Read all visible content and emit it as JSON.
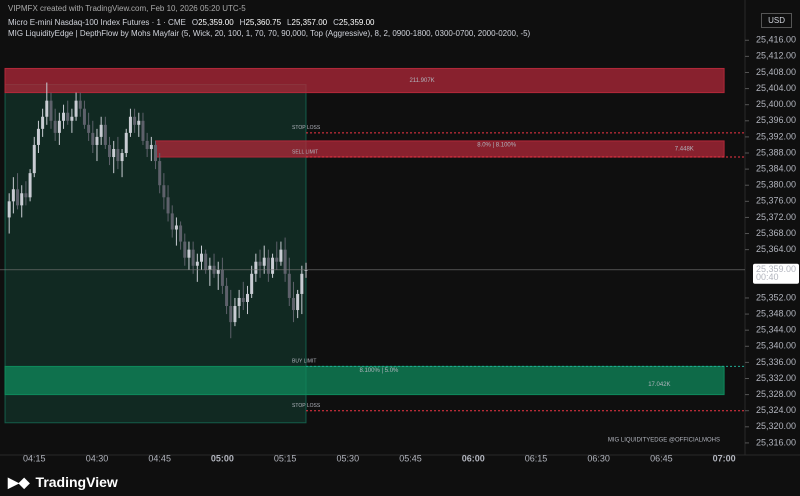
{
  "header": {
    "credit": "VIPMFX created with TradingView.com, Feb 10, 2026 05:20 UTC-5",
    "symbol": "Micro E-mini Nasdaq-100 Index Futures · 1 · CME",
    "ohlc": [
      {
        "key": "O",
        "label": "25,359.00"
      },
      {
        "key": "H",
        "label": "25,360.75"
      },
      {
        "key": "L",
        "label": "25,357.00"
      },
      {
        "key": "C",
        "label": "25,359.00"
      }
    ],
    "indicator": "MIG LiquidityEdge | DepthFlow by Mohs Mayfair (5, Wick, 20, 100, 1, 70, 70, 90,000, Top (Aggressive), 8, 2, 0900-1800, 0300-0700, 2000-0200, -5)",
    "currency": "USD"
  },
  "chart_data": {
    "type": "candlestick",
    "up_color": "#c9ccd3",
    "down_color": "#5e616b",
    "x": [
      "04:09",
      "04:10",
      "04:11",
      "04:12",
      "04:13",
      "04:14",
      "04:15",
      "04:16",
      "04:17",
      "04:18",
      "04:19",
      "04:20",
      "04:21",
      "04:22",
      "04:23",
      "04:24",
      "04:25",
      "04:26",
      "04:27",
      "04:28",
      "04:29",
      "04:30",
      "04:31",
      "04:32",
      "04:33",
      "04:34",
      "04:35",
      "04:36",
      "04:37",
      "04:38",
      "04:39",
      "04:40",
      "04:41",
      "04:42",
      "04:43",
      "04:44",
      "04:45",
      "04:46",
      "04:47",
      "04:48",
      "04:49",
      "04:50",
      "04:51",
      "04:52",
      "04:53",
      "04:54",
      "04:55",
      "04:56",
      "04:57",
      "04:58",
      "04:59",
      "05:00",
      "05:01",
      "05:02",
      "05:03",
      "05:04",
      "05:05",
      "05:06",
      "05:07",
      "05:08",
      "05:09",
      "05:10",
      "05:11",
      "05:12",
      "05:13",
      "05:14",
      "05:15",
      "05:16",
      "05:17",
      "05:18",
      "05:19",
      "05:20"
    ],
    "ohlc": [
      [
        25372,
        25378,
        25368,
        25376
      ],
      [
        25376,
        25382,
        25373,
        25379
      ],
      [
        25379,
        25383,
        25374,
        25375
      ],
      [
        25375,
        25380,
        25372,
        25378
      ],
      [
        25378,
        25381,
        25375,
        25377
      ],
      [
        25377,
        25384,
        25376,
        25383
      ],
      [
        25383,
        25392,
        25382,
        25390
      ],
      [
        25390,
        25396,
        25388,
        25394
      ],
      [
        25394,
        25399,
        25392,
        25397
      ],
      [
        25397,
        25405.5,
        25395,
        25401
      ],
      [
        25401,
        25403,
        25394,
        25396
      ],
      [
        25396,
        25399,
        25391,
        25393
      ],
      [
        25393,
        25398,
        25390,
        25396
      ],
      [
        25396,
        25400,
        25394,
        25398
      ],
      [
        25398,
        25401,
        25395,
        25396
      ],
      [
        25396,
        25399,
        25393,
        25397
      ],
      [
        25397,
        25403,
        25396,
        25401
      ],
      [
        25401,
        25403,
        25397,
        25399
      ],
      [
        25399,
        25401,
        25394,
        25395
      ],
      [
        25395,
        25398,
        25391,
        25393
      ],
      [
        25393,
        25396,
        25388,
        25390
      ],
      [
        25390,
        25394,
        25386,
        25392
      ],
      [
        25392,
        25397,
        25390,
        25395
      ],
      [
        25395,
        25397,
        25389,
        25390
      ],
      [
        25390,
        25392,
        25385,
        25387
      ],
      [
        25387,
        25391,
        25383,
        25389
      ],
      [
        25389,
        25392,
        25384,
        25386
      ],
      [
        25386,
        25389,
        25382,
        25388
      ],
      [
        25388,
        25394,
        25387,
        25393
      ],
      [
        25393,
        25399,
        25392,
        25397
      ],
      [
        25397,
        25399,
        25393,
        25395
      ],
      [
        25395,
        25398,
        25392,
        25396
      ],
      [
        25396,
        25398,
        25390,
        25391
      ],
      [
        25391,
        25393,
        25387,
        25389
      ],
      [
        25389,
        25392,
        25386,
        25390
      ],
      [
        25390,
        25391,
        25384,
        25386
      ],
      [
        25386,
        25388,
        25378,
        25380
      ],
      [
        25380,
        25383,
        25374,
        25377
      ],
      [
        25377,
        25380,
        25371,
        25373
      ],
      [
        25373,
        25375,
        25367,
        25369
      ],
      [
        25369,
        25372,
        25365,
        25370
      ],
      [
        25370,
        25371,
        25364,
        25366
      ],
      [
        25366,
        25368,
        25360,
        25362
      ],
      [
        25362,
        25366,
        25359,
        25364
      ],
      [
        25364,
        25366,
        25358,
        25360
      ],
      [
        25360,
        25363,
        25356,
        25361
      ],
      [
        25361,
        25365,
        25359,
        25363
      ],
      [
        25363,
        25364,
        25358,
        25359
      ],
      [
        25359,
        25362,
        25355,
        25360
      ],
      [
        25360,
        25363,
        25357,
        25358
      ],
      [
        25358,
        25361,
        25354,
        25359
      ],
      [
        25359,
        25362,
        25353,
        25355
      ],
      [
        25355,
        25357,
        25348,
        25350
      ],
      [
        25350,
        25354,
        25342,
        25346
      ],
      [
        25346,
        25352,
        25345,
        25350
      ],
      [
        25350,
        25354,
        25347,
        25352
      ],
      [
        25352,
        25356,
        25349,
        25351
      ],
      [
        25351,
        25355,
        25348,
        25353
      ],
      [
        25353,
        25360,
        25352,
        25358
      ],
      [
        25358,
        25363,
        25356,
        25361
      ],
      [
        25361,
        25364,
        25357,
        25360
      ],
      [
        25360,
        25365,
        25358,
        25362
      ],
      [
        25362,
        25364,
        25356,
        25358
      ],
      [
        25358,
        25363,
        25357,
        25362
      ],
      [
        25362,
        25366,
        25359,
        25361
      ],
      [
        25361,
        25366,
        25360,
        25364
      ],
      [
        25364,
        25367,
        25356,
        25358
      ],
      [
        25358,
        25362,
        25350,
        25352
      ],
      [
        25352,
        25356,
        25346,
        25349
      ],
      [
        25349,
        25354,
        25347,
        25353
      ],
      [
        25353,
        25360,
        25348,
        25358
      ],
      [
        25359,
        25360.75,
        25357,
        25359
      ]
    ],
    "xlim": [
      "04:08",
      "07:05"
    ],
    "xticks": [
      "04:15",
      "04:30",
      "04:45",
      "05:00",
      "05:15",
      "05:30",
      "05:45",
      "06:00",
      "06:15",
      "06:30",
      "06:45",
      "07:00"
    ],
    "ylim": [
      25313,
      25426
    ],
    "yticks": [
      {
        "value": 25416,
        "label": "25,416.00"
      },
      {
        "value": 25412,
        "label": "25,412.00"
      },
      {
        "value": 25408,
        "label": "25,408.00"
      },
      {
        "value": 25404,
        "label": "25,404.00"
      },
      {
        "value": 25400,
        "label": "25,400.00"
      },
      {
        "value": 25396,
        "label": "25,396.00"
      },
      {
        "value": 25392,
        "label": "25,392.00"
      },
      {
        "value": 25388,
        "label": "25,388.00"
      },
      {
        "value": 25384,
        "label": "25,384.00"
      },
      {
        "value": 25380,
        "label": "25,380.00"
      },
      {
        "value": 25376,
        "label": "25,376.00"
      },
      {
        "value": 25372,
        "label": "25,372.00"
      },
      {
        "value": 25368,
        "label": "25,368.00"
      },
      {
        "value": 25364,
        "label": "25,364.00"
      },
      {
        "value": 25352,
        "label": "25,352.00"
      },
      {
        "value": 25348,
        "label": "25,348.00"
      },
      {
        "value": 25344,
        "label": "25,344.00"
      },
      {
        "value": 25340,
        "label": "25,340.00"
      },
      {
        "value": 25336,
        "label": "25,336.00"
      },
      {
        "value": 25332,
        "label": "25,332.00"
      },
      {
        "value": 25328,
        "label": "25,328.00"
      },
      {
        "value": 25324,
        "label": "25,324.00"
      },
      {
        "value": 25320,
        "label": "25,320.00"
      },
      {
        "value": 25316,
        "label": "25,316.00"
      }
    ],
    "session_box": {
      "top": 25405,
      "bottom": 25321,
      "start": "04:08",
      "end": "05:20",
      "color": "#1a9e7c"
    },
    "zones": [
      {
        "top": 25409,
        "bottom": 25403,
        "start": "04:08",
        "end": "07:00",
        "color": "#b2283a",
        "texts": [
          "211.907K"
        ]
      },
      {
        "top": 25391,
        "bottom": 25387,
        "start": "04:44",
        "end": "07:00",
        "color": "#b2283a",
        "texts": [
          "8.0% | 8.100%",
          "7.448K"
        ]
      },
      {
        "top": 25335,
        "bottom": 25328,
        "start": "04:08",
        "end": "07:00",
        "color": "#0f8a5c",
        "texts": [
          "8.100% | 5.0%",
          "17.042K"
        ]
      }
    ],
    "levels": [
      {
        "label": "STOP LOSS",
        "price": 25393,
        "color": "#f23645"
      },
      {
        "label": "SELL LIMIT",
        "price": 25387,
        "color": "#f23645"
      },
      {
        "label": "BUY LIMIT",
        "price": 25335,
        "color": "#22ab94"
      },
      {
        "label": "STOP LOSS",
        "price": 25324,
        "color": "#f23645"
      }
    ],
    "last_price": {
      "value": 25359,
      "label": "25,359.00"
    },
    "countdown": "00:40",
    "watermark": "MIG LIQUIDITYEDGE @OFFICIALMOHS"
  },
  "footer": {
    "brand": "TradingView"
  }
}
